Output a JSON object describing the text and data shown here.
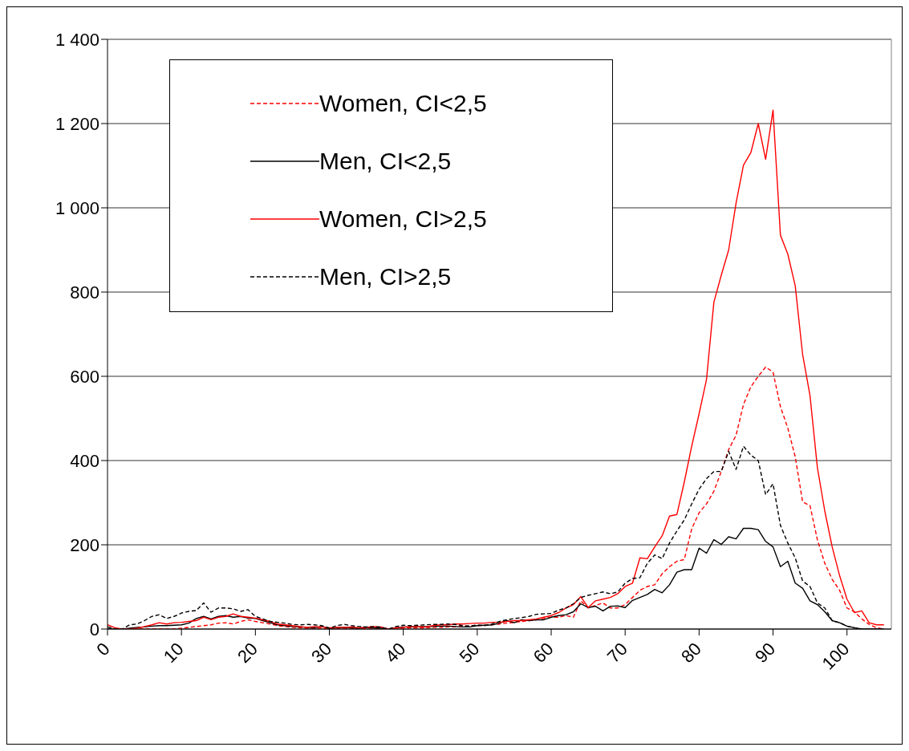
{
  "chart_data": {
    "type": "line",
    "x": [
      0,
      1,
      2,
      3,
      4,
      5,
      6,
      7,
      8,
      9,
      10,
      11,
      12,
      13,
      14,
      15,
      16,
      17,
      18,
      19,
      20,
      21,
      22,
      23,
      24,
      25,
      26,
      27,
      28,
      29,
      30,
      31,
      32,
      33,
      34,
      35,
      36,
      37,
      38,
      39,
      40,
      41,
      42,
      43,
      44,
      45,
      46,
      47,
      48,
      49,
      50,
      51,
      52,
      53,
      54,
      55,
      56,
      57,
      58,
      59,
      60,
      61,
      62,
      63,
      64,
      65,
      66,
      67,
      68,
      69,
      70,
      71,
      72,
      73,
      74,
      75,
      76,
      77,
      78,
      79,
      80,
      81,
      82,
      83,
      84,
      85,
      86,
      87,
      88,
      89,
      90,
      91,
      92,
      93,
      94,
      95,
      96,
      97,
      98,
      99,
      100,
      101,
      102,
      103,
      104,
      105
    ],
    "series": [
      {
        "name": "Women, CI<2,5",
        "color": "#ff0000",
        "line_style": "dashed",
        "values": [
          0,
          0,
          0,
          0,
          0,
          0,
          0,
          0,
          0,
          0,
          2,
          4,
          6,
          8,
          10,
          14,
          15,
          12,
          18,
          22,
          18,
          15,
          12,
          8,
          6,
          4,
          3,
          2,
          2,
          2,
          0,
          2,
          2,
          0,
          0,
          2,
          2,
          1,
          0,
          1,
          2,
          3,
          3,
          3,
          4,
          4,
          5,
          5,
          6,
          7,
          8,
          9,
          10,
          12,
          14,
          16,
          18,
          20,
          22,
          25,
          28,
          28,
          32,
          28,
          67,
          50,
          56,
          62,
          50,
          50,
          58,
          75,
          92,
          101,
          105,
          131,
          148,
          161,
          165,
          238,
          276,
          297,
          327,
          374,
          426,
          460,
          533,
          575,
          600,
          622,
          610,
          528,
          477,
          409,
          302,
          293,
          212,
          156,
          118,
          92,
          50,
          41,
          24,
          11,
          3,
          0
        ]
      },
      {
        "name": "Men, CI<2,5",
        "color": "#000000",
        "line_style": "solid",
        "values": [
          0,
          0,
          0,
          2,
          4,
          5,
          7,
          8,
          8,
          9,
          10,
          14,
          25,
          30,
          24,
          30,
          32,
          28,
          30,
          26,
          25,
          20,
          15,
          10,
          8,
          6,
          5,
          4,
          3,
          6,
          2,
          3,
          4,
          3,
          2,
          4,
          3,
          2,
          0,
          3,
          5,
          5,
          6,
          6,
          6,
          7,
          7,
          6,
          5,
          5,
          8,
          9,
          10,
          14,
          20,
          15,
          22,
          20,
          22,
          22,
          28,
          32,
          34,
          41,
          60,
          51,
          54,
          43,
          54,
          55,
          51,
          68,
          75,
          82,
          94,
          86,
          105,
          135,
          141,
          141,
          192,
          180,
          212,
          201,
          219,
          214,
          239,
          239,
          236,
          208,
          195,
          148,
          161,
          109,
          97,
          67,
          58,
          41,
          20,
          15,
          7,
          3,
          0,
          0,
          0,
          0
        ]
      },
      {
        "name": "Women, CI>2,5",
        "color": "#ff0000",
        "line_style": "solid",
        "values": [
          10,
          3,
          0,
          0,
          2,
          6,
          10,
          15,
          12,
          15,
          16,
          18,
          20,
          28,
          22,
          28,
          30,
          36,
          30,
          28,
          26,
          22,
          18,
          12,
          10,
          8,
          6,
          4,
          6,
          5,
          3,
          4,
          4,
          5,
          3,
          4,
          6,
          5,
          0,
          3,
          4,
          6,
          6,
          5,
          8,
          10,
          10,
          12,
          12,
          13,
          14,
          14,
          16,
          16,
          18,
          20,
          20,
          22,
          24,
          28,
          32,
          39,
          50,
          58,
          77,
          51,
          67,
          71,
          75,
          84,
          101,
          109,
          169,
          167,
          195,
          221,
          268,
          272,
          349,
          434,
          511,
          592,
          776,
          840,
          900,
          1011,
          1101,
          1131,
          1200,
          1115,
          1232,
          935,
          890,
          815,
          652,
          554,
          383,
          280,
          195,
          127,
          71,
          39,
          43,
          15,
          10,
          10
        ]
      },
      {
        "name": "Men, CI>2,5",
        "color": "#000000",
        "line_style": "dashed",
        "values": [
          5,
          0,
          0,
          10,
          12,
          20,
          30,
          34,
          25,
          30,
          38,
          42,
          44,
          62,
          40,
          50,
          50,
          48,
          42,
          46,
          30,
          24,
          18,
          16,
          14,
          11,
          10,
          11,
          10,
          8,
          2,
          8,
          11,
          8,
          6,
          5,
          6,
          4,
          0,
          6,
          9,
          8,
          9,
          10,
          11,
          11,
          12,
          11,
          8,
          7,
          10,
          8,
          12,
          18,
          22,
          25,
          27,
          30,
          35,
          36,
          37,
          45,
          50,
          60,
          75,
          80,
          84,
          88,
          84,
          88,
          109,
          120,
          122,
          156,
          176,
          167,
          204,
          233,
          259,
          297,
          332,
          357,
          374,
          374,
          422,
          379,
          434,
          413,
          400,
          319,
          345,
          246,
          204,
          169,
          114,
          101,
          62,
          50,
          20,
          15,
          7,
          3,
          0,
          0,
          0,
          0
        ]
      }
    ],
    "xlim": [
      0,
      106
    ],
    "xticks": [
      0,
      10,
      20,
      30,
      40,
      50,
      60,
      70,
      80,
      90,
      100
    ],
    "ylim": [
      0,
      1400
    ],
    "yticks": [
      0,
      200,
      400,
      600,
      800,
      {
        "value": 1000,
        "label": "1 000"
      },
      {
        "value": 1200,
        "label": "1 200"
      },
      {
        "value": 1400,
        "label": "1 400"
      }
    ],
    "grid": "y",
    "legend": "top left"
  }
}
